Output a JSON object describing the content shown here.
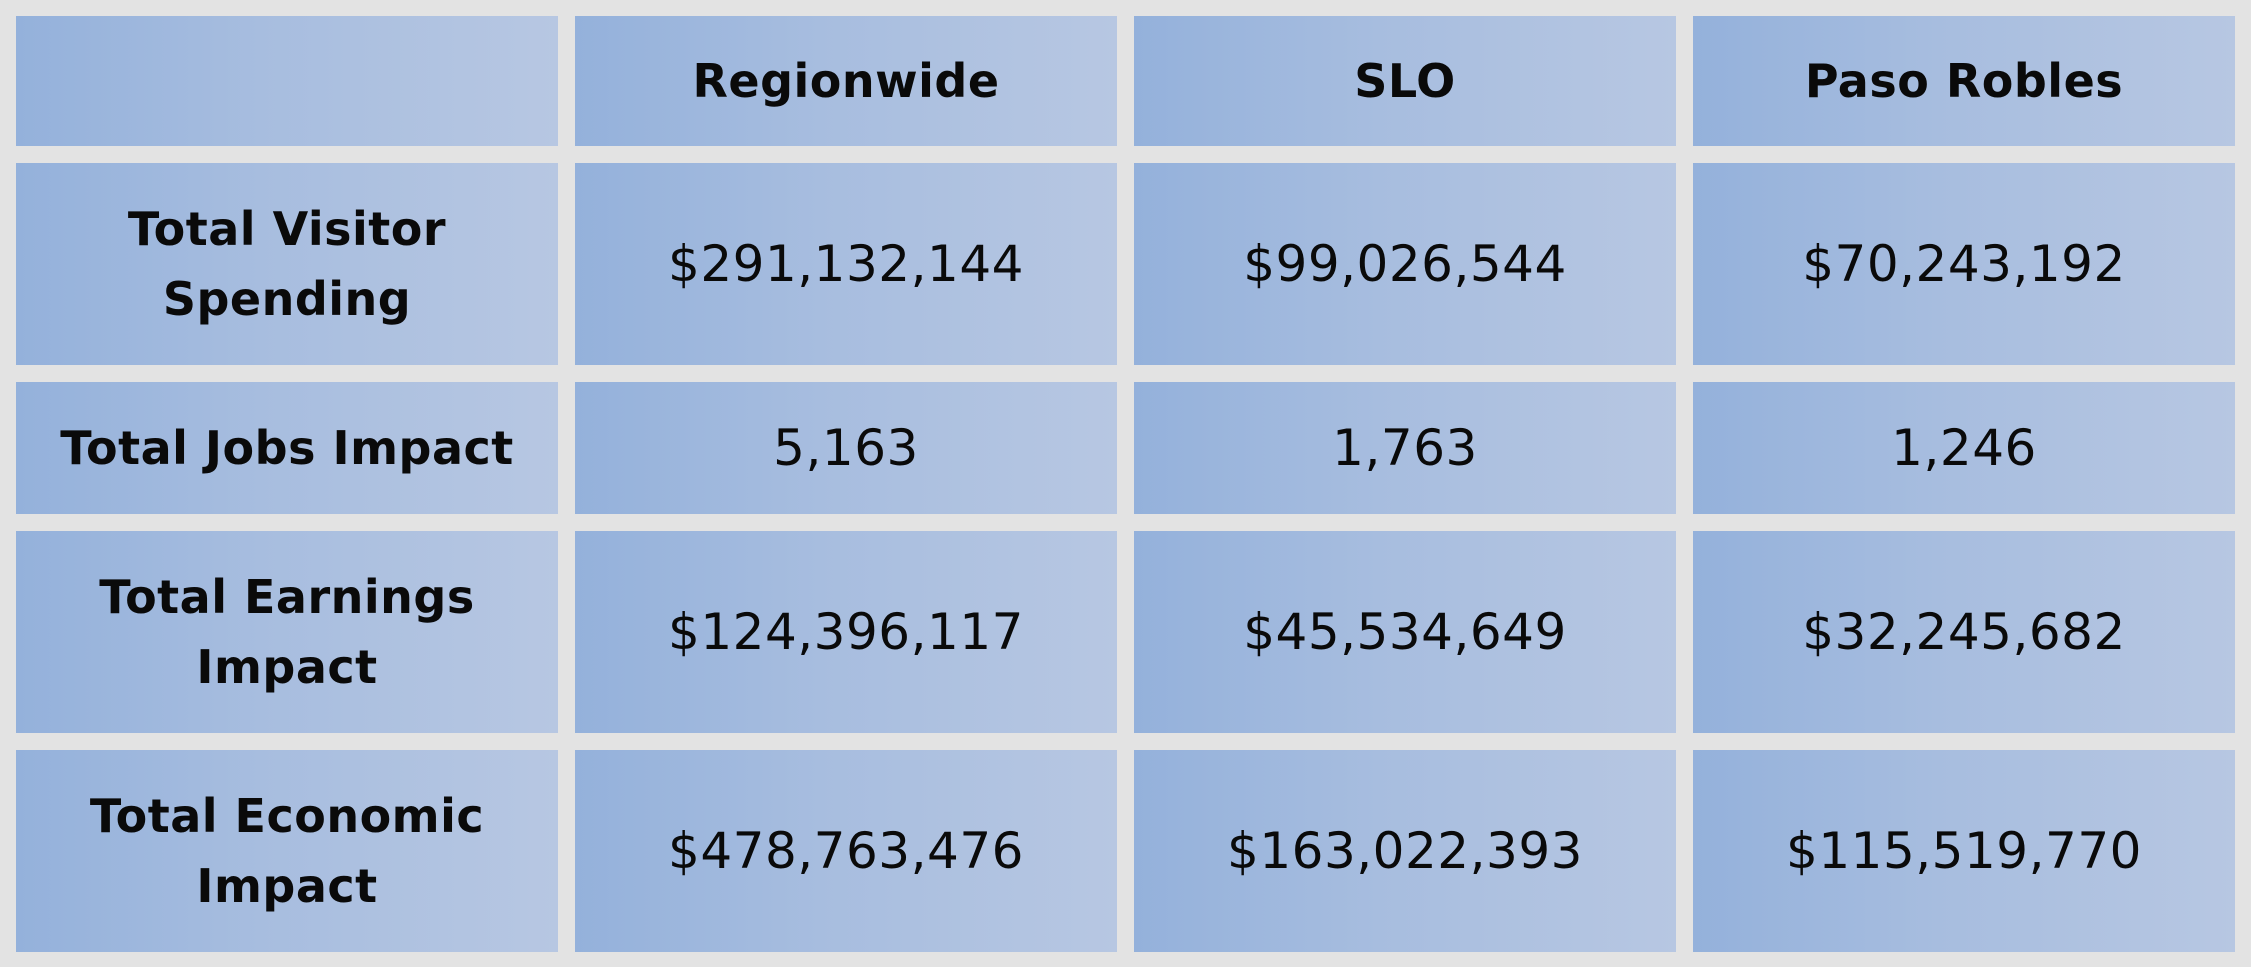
{
  "table": {
    "corner": "",
    "columns": [
      "Regionwide",
      "SLO",
      "Paso Robles"
    ],
    "rows": [
      {
        "label": "Total Visitor Spending",
        "values": [
          "$291,132,144",
          "$99,026,544",
          "$70,243,192"
        ]
      },
      {
        "label": "Total Jobs Impact",
        "values": [
          "5,163",
          "1,763",
          "1,246"
        ]
      },
      {
        "label": "Total Earnings Impact",
        "values": [
          "$124,396,117",
          "$45,534,649",
          "$32,245,682"
        ]
      },
      {
        "label": "Total Economic Impact",
        "values": [
          "$478,763,476",
          "$163,022,393",
          "$115,519,770"
        ]
      }
    ]
  },
  "colors": {
    "cell_gradient_start": "#94b1db",
    "cell_gradient_end": "#b7c7e2",
    "background": "#e3e3e3",
    "text": "#0a0a0a"
  }
}
